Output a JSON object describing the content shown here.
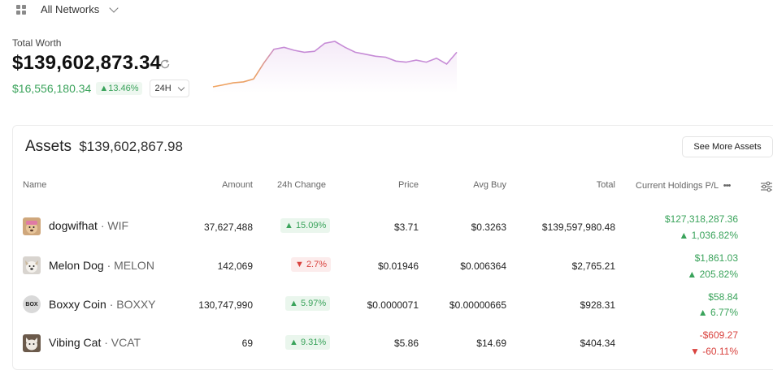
{
  "network": {
    "label": "All Networks"
  },
  "worth": {
    "label": "Total Worth",
    "value": "$139,602,873.34",
    "change_abs": "$16,556,180.34",
    "change_pct": "▲13.46%",
    "period": "24H"
  },
  "sparkline": {
    "values": [
      10,
      12,
      14,
      15,
      18,
      34,
      48,
      50,
      47,
      45,
      46,
      54,
      56,
      50,
      45,
      43,
      41,
      40,
      36,
      35,
      37,
      35,
      39,
      33,
      45
    ]
  },
  "assets": {
    "title": "Assets",
    "total": "$139,602,867.98",
    "see_more": "See More Assets",
    "columns": {
      "name": "Name",
      "amount": "Amount",
      "change": "24h Change",
      "price": "Price",
      "avg_buy": "Avg Buy",
      "total": "Total",
      "pl": "Current Holdings P/L",
      "more": "•••"
    },
    "rows": [
      {
        "name": "dogwifhat",
        "symbol": "· WIF",
        "amount": "37,627,488",
        "change": "▲ 15.09%",
        "change_dir": "up",
        "price": "$3.71",
        "avg_buy": "$0.3263",
        "total": "$139,597,980.48",
        "pl_abs": "$127,318,287.36",
        "pl_pct": "▲ 1,036.82%",
        "pl_dir": "pos",
        "icon": "dog-avatar-icon"
      },
      {
        "name": "Melon Dog",
        "symbol": "· MELON",
        "amount": "142,069",
        "change": "▼ 2.7%",
        "change_dir": "down",
        "price": "$0.01946",
        "avg_buy": "$0.006364",
        "total": "$2,765.21",
        "pl_abs": "$1,861.03",
        "pl_pct": "▲ 205.82%",
        "pl_dir": "pos",
        "icon": "melon-dog-icon"
      },
      {
        "name": "Boxxy Coin",
        "symbol": "· BOXXY",
        "amount": "130,747,990",
        "change": "▲ 5.97%",
        "change_dir": "up",
        "price": "$0.0000071",
        "avg_buy": "$0.00000665",
        "total": "$928.31",
        "pl_abs": "$58.84",
        "pl_pct": "▲ 6.77%",
        "pl_dir": "pos",
        "icon_text": "BOX",
        "icon": "boxxy-coin-icon"
      },
      {
        "name": "Vibing Cat",
        "symbol": "· VCAT",
        "amount": "69",
        "change": "▲ 9.31%",
        "change_dir": "up",
        "price": "$5.86",
        "avg_buy": "$14.69",
        "total": "$404.34",
        "pl_abs": "-$609.27",
        "pl_pct": "▼ -60.11%",
        "pl_dir": "neg",
        "icon": "cat-avatar-icon"
      }
    ]
  }
}
